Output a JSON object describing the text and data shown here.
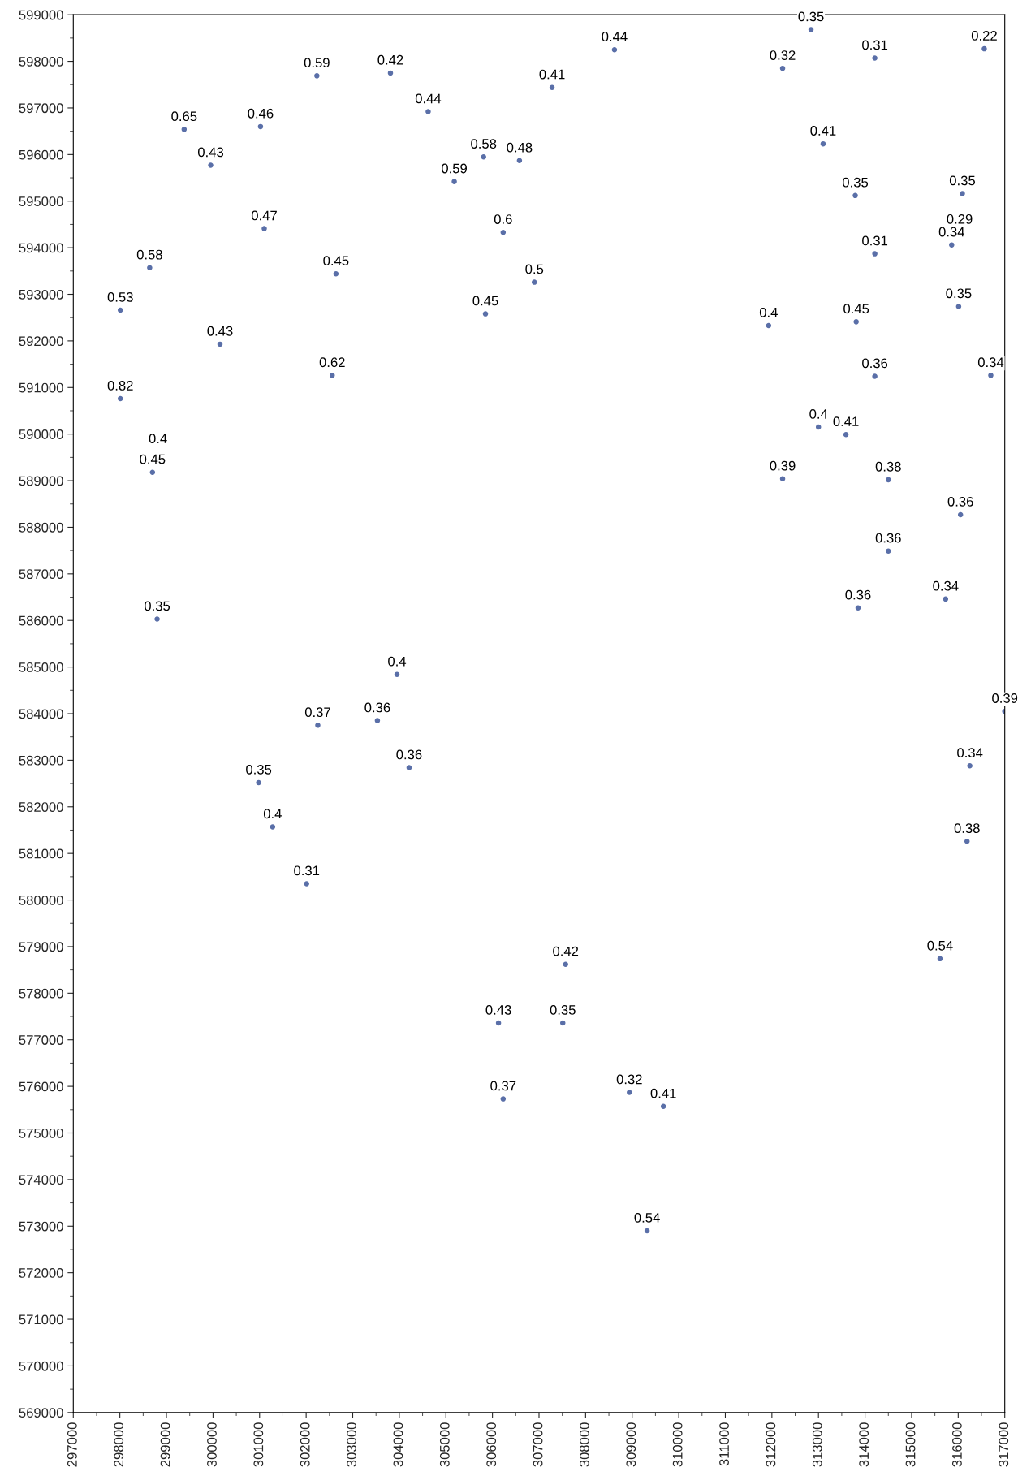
{
  "chart_data": {
    "type": "scatter",
    "marker": "circle",
    "grid": false,
    "legend": false,
    "xlim": [
      297000,
      317000
    ],
    "ylim": [
      569000,
      599000
    ],
    "xticks": [
      297000,
      298000,
      299000,
      300000,
      301000,
      302000,
      303000,
      304000,
      305000,
      306000,
      307000,
      308000,
      309000,
      310000,
      311000,
      312000,
      313000,
      314000,
      315000,
      316000,
      317000
    ],
    "yticks": [
      569000,
      570000,
      571000,
      572000,
      573000,
      574000,
      575000,
      576000,
      577000,
      578000,
      579000,
      580000,
      581000,
      582000,
      583000,
      584000,
      585000,
      586000,
      587000,
      588000,
      589000,
      590000,
      591000,
      592000,
      593000,
      594000,
      595000,
      596000,
      597000,
      598000,
      599000
    ],
    "series": [
      {
        "color": "#5a6fa8",
        "x": [
          312840,
          316560,
          308620,
          314210,
          312230,
          302230,
          303810,
          307280,
          304620,
          299380,
          301020,
          313100,
          299950,
          305810,
          306580,
          305180,
          313790,
          316090,
          301100,
          306230,
          315860,
          314210,
          298640,
          302640,
          306900,
          298010,
          305850,
          316010,
          311930,
          313810,
          300150,
          302560,
          314210,
          316700,
          298010,
          313000,
          313590,
          298700,
          312230,
          314500,
          316050,
          314500,
          315730,
          313850,
          298800,
          303950,
          317000,
          302250,
          303530,
          304210,
          316250,
          300980,
          301280,
          316190,
          302010,
          315610,
          307570,
          306130,
          307510,
          306230,
          308940,
          309670,
          309320
        ],
        "values": [
          598680,
          598270,
          598250,
          598070,
          597850,
          597690,
          597750,
          597440,
          596920,
          596540,
          596600,
          596230,
          595770,
          595950,
          595870,
          595420,
          595120,
          595160,
          594410,
          594330,
          594060,
          593870,
          593570,
          593440,
          593260,
          592660,
          592580,
          592740,
          592330,
          592410,
          591930,
          591260,
          591240,
          591260,
          590760,
          590150,
          589990,
          589180,
          589040,
          589020,
          588270,
          587490,
          586460,
          586270,
          586030,
          584840,
          584050,
          583750,
          583850,
          582840,
          582880,
          582520,
          581570,
          581260,
          580350,
          578740,
          578620,
          577360,
          577360,
          575730,
          575870,
          575570,
          572900
        ]
      }
    ],
    "annotations": [
      {
        "text": "0.35",
        "x": 312840,
        "y": 598680
      },
      {
        "text": "0.22",
        "x": 316560,
        "y": 598270
      },
      {
        "text": "0.44",
        "x": 308620,
        "y": 598250
      },
      {
        "text": "0.31",
        "x": 314210,
        "y": 598070
      },
      {
        "text": "0.32",
        "x": 312230,
        "y": 597850
      },
      {
        "text": "0.59",
        "x": 302230,
        "y": 597690
      },
      {
        "text": "0.42",
        "x": 303810,
        "y": 597750
      },
      {
        "text": "0.41",
        "x": 307280,
        "y": 597440
      },
      {
        "text": "0.44",
        "x": 304620,
        "y": 596920
      },
      {
        "text": "0.65",
        "x": 299380,
        "y": 596540
      },
      {
        "text": "0.46",
        "x": 301020,
        "y": 596600
      },
      {
        "text": "0.41",
        "x": 313100,
        "y": 596230
      },
      {
        "text": "0.43",
        "x": 299950,
        "y": 595770
      },
      {
        "text": "0.58",
        "x": 305810,
        "y": 595950
      },
      {
        "text": "0.48",
        "x": 306580,
        "y": 595870
      },
      {
        "text": "0.59",
        "x": 305180,
        "y": 595420
      },
      {
        "text": "0.35",
        "x": 313790,
        "y": 595120
      },
      {
        "text": "0.35",
        "x": 316090,
        "y": 595160
      },
      {
        "text": "0.47",
        "x": 301100,
        "y": 594410
      },
      {
        "text": "0.6",
        "x": 306230,
        "y": 594330
      },
      "0.29",
      {
        "text": "0.34",
        "x": 315860,
        "y": 594060
      },
      {
        "text": "0.31",
        "x": 314210,
        "y": 593870
      },
      {
        "text": "0.58",
        "x": 298640,
        "y": 593570
      },
      {
        "text": "0.45",
        "x": 302640,
        "y": 593440
      },
      {
        "text": "0.5",
        "x": 306900,
        "y": 593260
      },
      {
        "text": "0.53",
        "x": 298010,
        "y": 592660
      },
      {
        "text": "0.45",
        "x": 305850,
        "y": 592580
      },
      {
        "text": "0.35",
        "x": 316010,
        "y": 592740
      },
      {
        "text": "0.4",
        "x": 311930,
        "y": 592330
      },
      {
        "text": "0.45",
        "x": 313810,
        "y": 592410
      },
      {
        "text": "0.43",
        "x": 300150,
        "y": 591930
      },
      {
        "text": "0.62",
        "x": 302560,
        "y": 591260
      },
      {
        "text": "0.36",
        "x": 314210,
        "y": 591240
      },
      {
        "text": "0.34",
        "x": 316700,
        "y": 591260
      },
      {
        "text": "0.82",
        "x": 298010,
        "y": 590760
      },
      {
        "text": "0.4",
        "x": 313000,
        "y": 590150
      },
      {
        "text": "0.41",
        "x": 313590,
        "y": 589990
      },
      "0.4",
      {
        "text": "0.45",
        "x": 298700,
        "y": 589180
      },
      {
        "text": "0.39",
        "x": 312230,
        "y": 589040
      },
      {
        "text": "0.38",
        "x": 314500,
        "y": 589020
      },
      {
        "text": "0.36",
        "x": 316050,
        "y": 588270
      },
      {
        "text": "0.36",
        "x": 314500,
        "y": 587490
      },
      {
        "text": "0.34",
        "x": 315730,
        "y": 586460
      },
      {
        "text": "0.36",
        "x": 313850,
        "y": 586270
      },
      {
        "text": "0.35",
        "x": 298800,
        "y": 586030
      },
      {
        "text": "0.4",
        "x": 303950,
        "y": 584840
      },
      {
        "text": "0.39",
        "x": 317000,
        "y": 584050
      },
      {
        "text": "0.37",
        "x": 302250,
        "y": 583750
      },
      {
        "text": "0.36",
        "x": 303530,
        "y": 583850
      },
      {
        "text": "0.36",
        "x": 304210,
        "y": 582840
      },
      {
        "text": "0.34",
        "x": 316250,
        "y": 582880
      },
      {
        "text": "0.35",
        "x": 300980,
        "y": 582520
      },
      {
        "text": "0.4",
        "x": 301280,
        "y": 581570
      },
      {
        "text": "0.38",
        "x": 316190,
        "y": 581260
      },
      {
        "text": "0.31",
        "x": 302010,
        "y": 580350
      },
      {
        "text": "0.54",
        "x": 315610,
        "y": 578740
      },
      {
        "text": "0.42",
        "x": 307570,
        "y": 578620
      },
      {
        "text": "0.43",
        "x": 306130,
        "y": 577360
      },
      {
        "text": "0.35",
        "x": 307510,
        "y": 577360
      },
      {
        "text": "0.37",
        "x": 306230,
        "y": 575730
      },
      {
        "text": "0.32",
        "x": 308940,
        "y": 575870
      },
      {
        "text": "0.41",
        "x": 309670,
        "y": 575570
      },
      {
        "text": "0.54",
        "x": 309320,
        "y": 572900
      }
    ]
  }
}
